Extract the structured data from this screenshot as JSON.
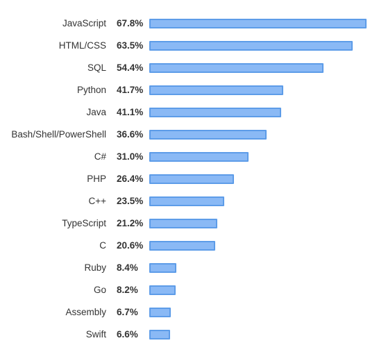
{
  "chart_data": {
    "type": "bar",
    "orientation": "horizontal",
    "title": "",
    "xlabel": "",
    "ylabel": "",
    "xlim": [
      0,
      67.8
    ],
    "grid": false,
    "legend": "none",
    "bar_color": "#8ab9f5",
    "bar_border_color": "#5d9ce8",
    "categories": [
      "JavaScript",
      "HTML/CSS",
      "SQL",
      "Python",
      "Java",
      "Bash/Shell/PowerShell",
      "C#",
      "PHP",
      "C++",
      "TypeScript",
      "C",
      "Ruby",
      "Go",
      "Assembly",
      "Swift"
    ],
    "values": [
      67.8,
      63.5,
      54.4,
      41.7,
      41.1,
      36.6,
      31.0,
      26.4,
      23.5,
      21.2,
      20.6,
      8.4,
      8.2,
      6.7,
      6.6
    ],
    "value_labels": [
      "67.8%",
      "63.5%",
      "54.4%",
      "41.7%",
      "41.1%",
      "36.6%",
      "31.0%",
      "26.4%",
      "23.5%",
      "21.2%",
      "20.6%",
      "8.4%",
      "8.2%",
      "6.7%",
      "6.6%"
    ]
  }
}
